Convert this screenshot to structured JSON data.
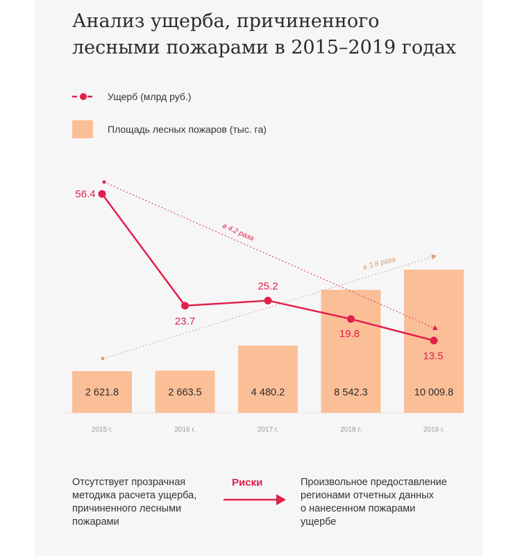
{
  "title": "Анализ ущерба, причиненного\nлесными пожарами в 2015–2019 годах",
  "colors": {
    "damage": "#e0204b",
    "area": "#fbbf98",
    "area_arrow": "#d6a07c"
  },
  "legend": {
    "damage": "Ущерб (млрд руб.)",
    "area": "Площадь лесных пожаров (тыс. га)"
  },
  "chart_data": {
    "type": "bar+line",
    "categories": [
      "2015 г.",
      "2016 г.",
      "2017 г.",
      "2018 г.",
      "2019 г."
    ],
    "bar_series": {
      "name": "Площадь лесных пожаров (тыс. га)",
      "values": [
        2621.8,
        2663.5,
        4480.2,
        8542.3,
        10009.8
      ],
      "labels": [
        "2 621.8",
        "2 663.5",
        "4 480.2",
        "8 542.3",
        "10 009.8"
      ]
    },
    "line_series": {
      "name": "Ущерб (млрд руб.)",
      "values": [
        56.4,
        23.7,
        25.2,
        19.8,
        13.5
      ],
      "labels": [
        "56.4",
        "23.7",
        "25.2",
        "19.8",
        "13.5"
      ]
    },
    "annotations": {
      "damage_trend": "в 4.2 раза",
      "area_trend": "в 3.8 раза"
    }
  },
  "bottom": {
    "left": "Отсутствует прозрачная\nметодика расчета ущерба,\nпричиненного лесными\nпожарами",
    "middle": "Риски",
    "right": "Произвольное предоставление\nрегионами отчетных данных\nо нанесенном пожарами\nущербе"
  }
}
